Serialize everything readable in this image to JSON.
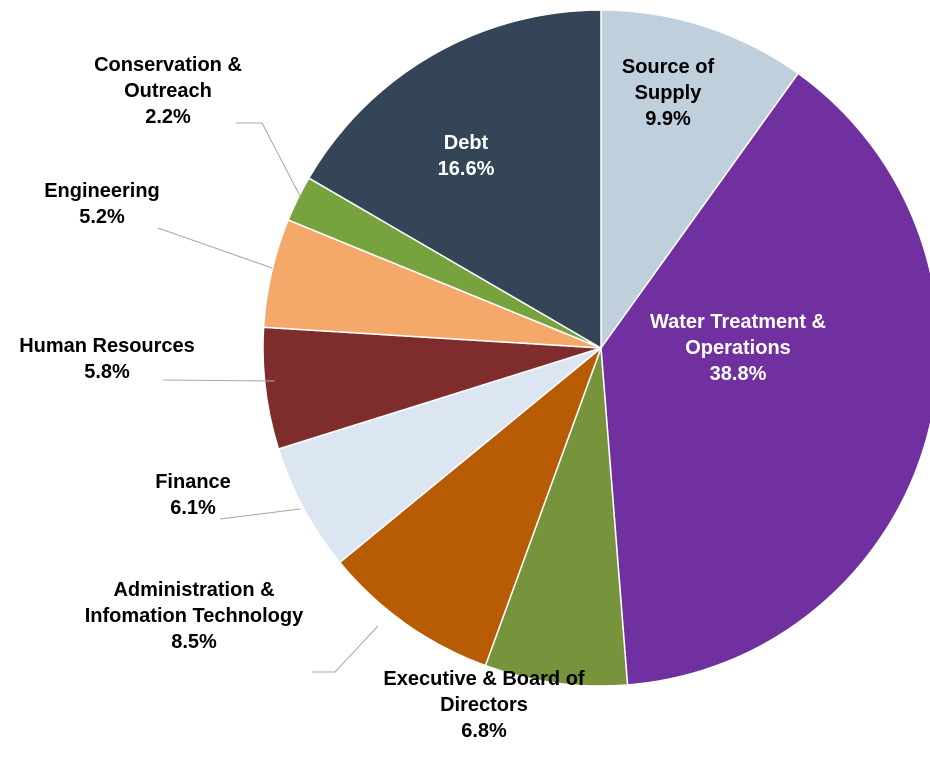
{
  "chart_data": {
    "type": "pie",
    "title": "",
    "slices": [
      {
        "name": "Source of Supply",
        "label_lines": [
          "Source of",
          "Supply"
        ],
        "pct_label": "9.9%",
        "value": 9.9,
        "color": "#bfcfdc",
        "text_color": "#000000",
        "placement": "inside"
      },
      {
        "name": "Water Treatment & Operations",
        "label_lines": [
          "Water Treatment &",
          "Operations"
        ],
        "pct_label": "38.8%",
        "value": 38.8,
        "color": "#7030a0",
        "text_color": "#ffffff",
        "placement": "inside"
      },
      {
        "name": "Executive & Board of Directors",
        "label_lines": [
          "Executive & Board of",
          "Directors"
        ],
        "pct_label": "6.8%",
        "value": 6.8,
        "color": "#77933c",
        "text_color": "#000000",
        "placement": "outside"
      },
      {
        "name": "Administration & Infomation Technology",
        "label_lines": [
          "Administration &",
          "Infomation Technology"
        ],
        "pct_label": "8.5%",
        "value": 8.5,
        "color": "#b85b05",
        "text_color": "#000000",
        "placement": "outside"
      },
      {
        "name": "Finance",
        "label_lines": [
          "Finance"
        ],
        "pct_label": "6.1%",
        "value": 6.1,
        "color": "#dce6f2",
        "text_color": "#000000",
        "placement": "outside"
      },
      {
        "name": "Human Resources",
        "label_lines": [
          "Human Resources"
        ],
        "pct_label": "5.8%",
        "value": 5.8,
        "color": "#7f2c2c",
        "text_color": "#000000",
        "placement": "outside"
      },
      {
        "name": "Engineering",
        "label_lines": [
          "Engineering"
        ],
        "pct_label": "5.2%",
        "value": 5.2,
        "color": "#f4a96b",
        "text_color": "#000000",
        "placement": "outside"
      },
      {
        "name": "Conservation & Outreach",
        "label_lines": [
          "Conservation &",
          "Outreach"
        ],
        "pct_label": "2.2%",
        "value": 2.2,
        "color": "#77a33e",
        "text_color": "#000000",
        "placement": "outside"
      },
      {
        "name": "Debt",
        "label_lines": [
          "Debt"
        ],
        "pct_label": "16.6%",
        "value": 16.6,
        "color": "#334556",
        "text_color": "#ffffff",
        "placement": "inside"
      }
    ],
    "start_direction": "12 o'clock",
    "direction": "clockwise",
    "legend": "none"
  }
}
